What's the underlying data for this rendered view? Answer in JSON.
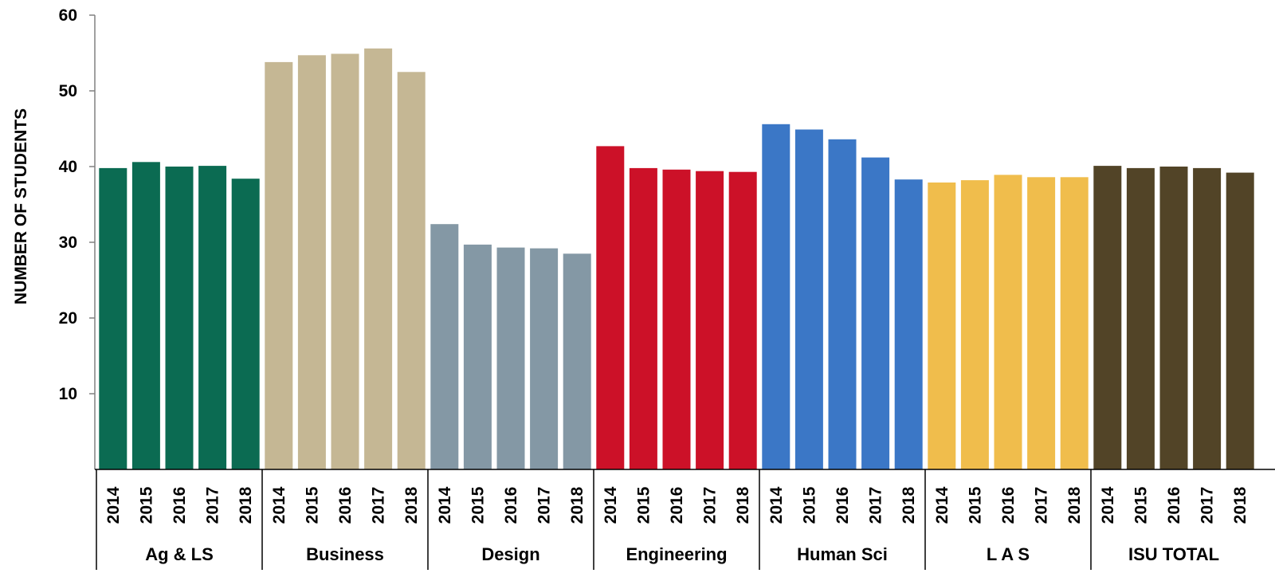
{
  "chart_data": {
    "type": "bar",
    "ylabel": "NUMBER OF STUDENTS",
    "xlabel": "",
    "ylim": [
      0,
      60
    ],
    "yticks": [
      "10",
      "20",
      "30",
      "40",
      "50",
      "60"
    ],
    "grid": false,
    "years": [
      "2014",
      "2015",
      "2016",
      "2017",
      "2018"
    ],
    "groups": [
      {
        "name": "Ag & LS",
        "color": "#0b6b52",
        "values": [
          39.8,
          40.6,
          40.0,
          40.1,
          38.4
        ]
      },
      {
        "name": "Business",
        "color": "#c5b794",
        "values": [
          53.8,
          54.7,
          54.9,
          55.6,
          52.5
        ]
      },
      {
        "name": "Design",
        "color": "#8498a5",
        "values": [
          32.4,
          29.7,
          29.3,
          29.2,
          28.5
        ]
      },
      {
        "name": "Engineering",
        "color": "#cc1128",
        "values": [
          42.7,
          39.8,
          39.6,
          39.4,
          39.3
        ]
      },
      {
        "name": "Human Sci",
        "color": "#3b77c6",
        "values": [
          45.6,
          44.9,
          43.6,
          41.2,
          38.3
        ]
      },
      {
        "name": "L A S",
        "color": "#f0bd4c",
        "values": [
          37.9,
          38.2,
          38.9,
          38.6,
          38.6
        ]
      },
      {
        "name": "ISU TOTAL",
        "color": "#524427",
        "values": [
          40.1,
          39.8,
          40.0,
          39.8,
          39.2
        ]
      }
    ]
  }
}
